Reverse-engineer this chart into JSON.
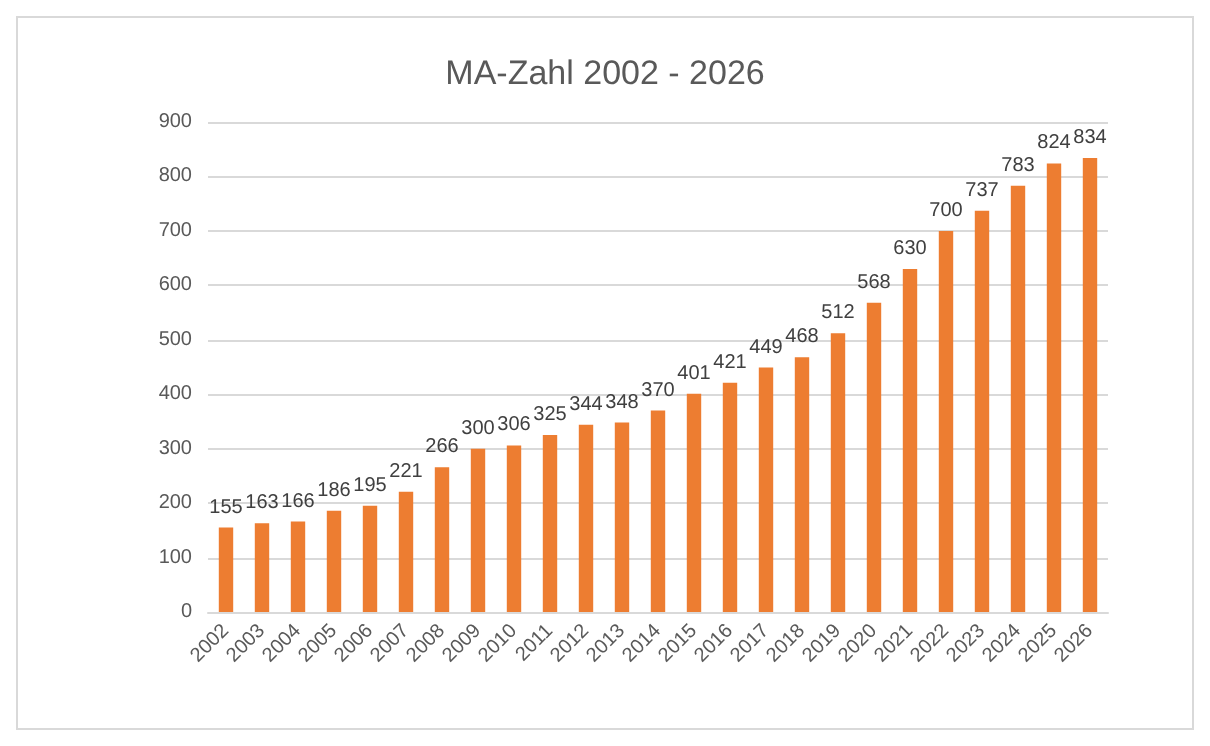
{
  "chart_data": {
    "type": "bar",
    "title": "MA-Zahl 2002 - 2026",
    "categories": [
      "2002",
      "2003",
      "2004",
      "2005",
      "2006",
      "2007",
      "2008",
      "2009",
      "2010",
      "2011",
      "2012",
      "2013",
      "2014",
      "2015",
      "2016",
      "2017",
      "2018",
      "2019",
      "2020",
      "2021",
      "2022",
      "2023",
      "2024",
      "2025",
      "2026"
    ],
    "values": [
      155,
      163,
      166,
      186,
      195,
      221,
      266,
      300,
      306,
      325,
      344,
      348,
      370,
      401,
      421,
      449,
      468,
      512,
      568,
      630,
      700,
      737,
      783,
      824,
      834
    ],
    "color": "#ed7d31",
    "ylim": [
      0,
      900
    ],
    "yticks": [
      0,
      100,
      200,
      300,
      400,
      500,
      600,
      700,
      800,
      900
    ],
    "grid": "y",
    "data_labels": true
  }
}
